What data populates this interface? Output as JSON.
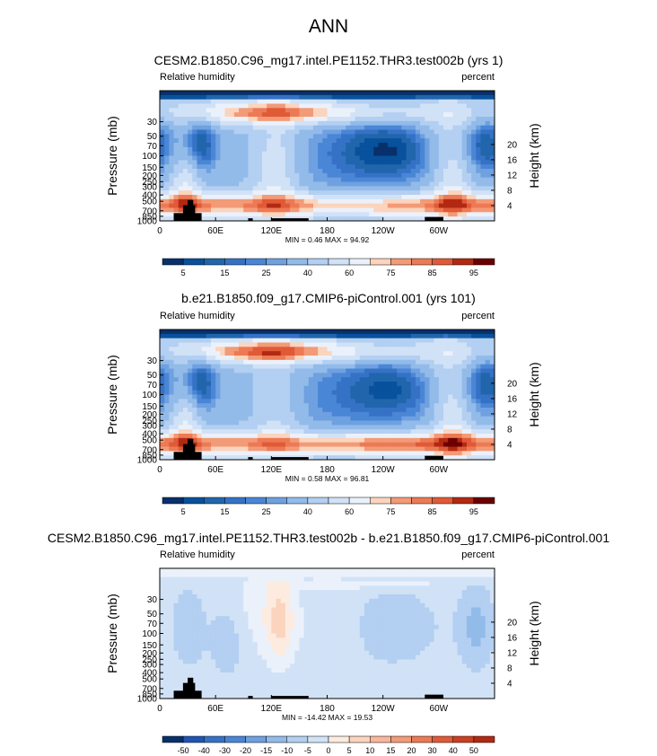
{
  "figure": {
    "title": "ANN",
    "colors": {
      "seq": [
        "#08306b",
        "#08519c",
        "#2166ac",
        "#3572c6",
        "#4a86d6",
        "#6fa0e0",
        "#92bbea",
        "#b3cff1",
        "#d1e2f7",
        "#ebf1fb",
        "#fdebe0",
        "#fbd4bd",
        "#f8b79a",
        "#f39a77",
        "#ec7a55",
        "#e05a37",
        "#cc3f22",
        "#b22912",
        "#8a1206",
        "#6a0000"
      ],
      "diff": [
        "#08306b",
        "#1f55b3",
        "#3572c6",
        "#4a86d6",
        "#6fa0e0",
        "#92bbea",
        "#b3cff1",
        "#d1e2f7",
        "#ebf1fb",
        "#fdebe0",
        "#fbd4bd",
        "#f8b79a",
        "#f39a77",
        "#ec7a55",
        "#e05a37",
        "#cc3f22",
        "#b22912",
        "#6a0000"
      ]
    }
  },
  "chart_data": [
    {
      "type": "heatmap",
      "title": "CESM2.B1850.C96_mg17.intel.PE1152.THR3.test002b (yrs 1)",
      "left_label": "Relative humidity",
      "right_label": "percent",
      "ylabel": "Pressure (mb)",
      "ylabel_right": "Height (km)",
      "xlim": [
        0,
        360
      ],
      "ylim": [
        1000,
        10
      ],
      "x_ticks": [
        "0",
        "60E",
        "120E",
        "180",
        "120W",
        "60W"
      ],
      "x_tick_values": [
        0,
        60,
        120,
        180,
        240,
        300
      ],
      "y_ticks": [
        "30",
        "50",
        "70",
        "100",
        "150",
        "200",
        "250",
        "300",
        "400",
        "500",
        "700",
        "850",
        "1000"
      ],
      "y_tick_values": [
        30,
        50,
        70,
        100,
        150,
        200,
        250,
        300,
        400,
        500,
        700,
        850,
        1000
      ],
      "height_ticks": [
        "20",
        "16",
        "12",
        "8",
        "4"
      ],
      "height_tick_values": [
        20,
        16,
        12,
        8,
        4
      ],
      "min_max": "MIN =   0.46  MAX =  94.92",
      "colorbar_labels": [
        "5",
        "15",
        "25",
        "40",
        "60",
        "75",
        "85",
        "95"
      ],
      "colorbar_labels_index": [
        1,
        3,
        5,
        7,
        9,
        11,
        13,
        15
      ],
      "color_bins": 16,
      "field": "model"
    },
    {
      "type": "heatmap",
      "title": "b.e21.B1850.f09_g17.CMIP6-piControl.001 (yrs 101)",
      "left_label": "Relative humidity",
      "right_label": "percent",
      "ylabel": "Pressure (mb)",
      "ylabel_right": "Height (km)",
      "xlim": [
        0,
        360
      ],
      "ylim": [
        1000,
        10
      ],
      "x_ticks": [
        "0",
        "60E",
        "120E",
        "180",
        "120W",
        "60W"
      ],
      "x_tick_values": [
        0,
        60,
        120,
        180,
        240,
        300
      ],
      "y_ticks": [
        "30",
        "50",
        "70",
        "100",
        "150",
        "200",
        "250",
        "300",
        "400",
        "500",
        "700",
        "850",
        "1000"
      ],
      "y_tick_values": [
        30,
        50,
        70,
        100,
        150,
        200,
        250,
        300,
        400,
        500,
        700,
        850,
        1000
      ],
      "height_ticks": [
        "20",
        "16",
        "12",
        "8",
        "4"
      ],
      "height_tick_values": [
        20,
        16,
        12,
        8,
        4
      ],
      "min_max": "MIN =   0.58  MAX =  96.81",
      "colorbar_labels": [
        "5",
        "15",
        "25",
        "40",
        "60",
        "75",
        "85",
        "95"
      ],
      "colorbar_labels_index": [
        1,
        3,
        5,
        7,
        9,
        11,
        13,
        15
      ],
      "color_bins": 16,
      "field": "control"
    },
    {
      "type": "heatmap",
      "title": "CESM2.B1850.C96_mg17.intel.PE1152.THR3.test002b - b.e21.B1850.f09_g17.CMIP6-piControl.001",
      "left_label": "Relative humidity",
      "right_label": "percent",
      "ylabel": "Pressure (mb)",
      "ylabel_right": "Height (km)",
      "xlim": [
        0,
        360
      ],
      "ylim": [
        1000,
        10
      ],
      "x_ticks": [
        "0",
        "60E",
        "120E",
        "180",
        "120W",
        "60W"
      ],
      "x_tick_values": [
        0,
        60,
        120,
        180,
        240,
        300
      ],
      "y_ticks": [
        "30",
        "50",
        "70",
        "100",
        "150",
        "200",
        "250",
        "300",
        "400",
        "500",
        "700",
        "850",
        "1000"
      ],
      "y_tick_values": [
        30,
        50,
        70,
        100,
        150,
        200,
        250,
        300,
        400,
        500,
        700,
        850,
        1000
      ],
      "height_ticks": [
        "20",
        "16",
        "12",
        "8",
        "4"
      ],
      "height_tick_values": [
        20,
        16,
        12,
        8,
        4
      ],
      "min_max": "MIN = -14.42  MAX =  19.53",
      "colorbar_labels": [
        "-50",
        "-40",
        "-30",
        "-20",
        "-15",
        "-10",
        "-5",
        "0",
        "5",
        "10",
        "15",
        "20",
        "30",
        "40",
        "50"
      ],
      "colorbar_labels_index": [
        1,
        2,
        3,
        4,
        5,
        6,
        7,
        8,
        9,
        10,
        11,
        12,
        13,
        14,
        15
      ],
      "color_bins": 16,
      "field": "difference"
    }
  ]
}
